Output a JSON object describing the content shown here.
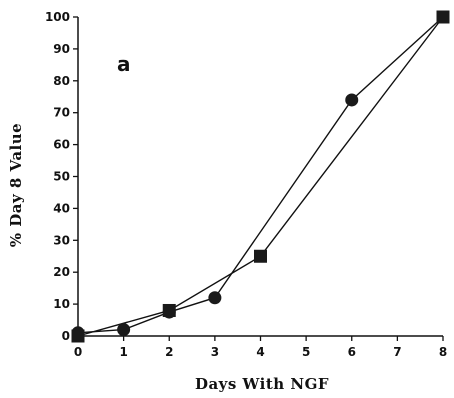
{
  "chart_data": {
    "type": "line",
    "panel_label": "a",
    "xlabel": "Days With NGF",
    "ylabel": "% Day 8 Value",
    "xlim": [
      0,
      8
    ],
    "ylim": [
      0,
      100
    ],
    "x_ticks": [
      0,
      1,
      2,
      3,
      4,
      5,
      6,
      7,
      8
    ],
    "y_ticks": [
      0,
      10,
      20,
      30,
      40,
      50,
      60,
      70,
      80,
      90,
      100
    ],
    "grid": false,
    "series": [
      {
        "marker": "circle",
        "x": [
          0,
          1,
          2,
          3,
          6,
          8
        ],
        "y": [
          1,
          2,
          7.5,
          12,
          74,
          100
        ]
      },
      {
        "marker": "square",
        "x": [
          0,
          2,
          4,
          8
        ],
        "y": [
          0,
          8,
          25,
          100
        ]
      }
    ],
    "colors": {
      "line": "#111111",
      "marker": "#1a1a1a"
    }
  }
}
